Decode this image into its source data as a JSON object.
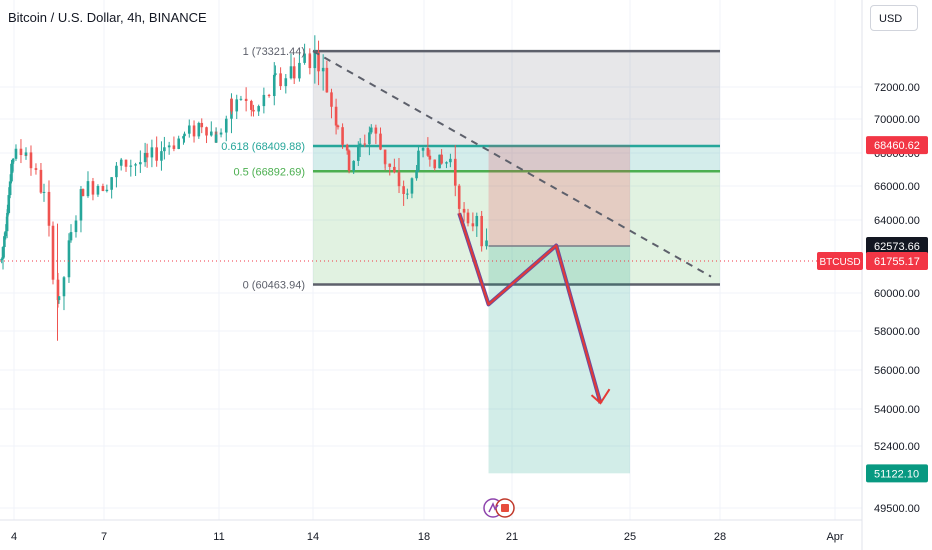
{
  "header": {
    "title": "Bitcoin / U.S. Dollar, 4h, BINANCE",
    "currency_button": "USD"
  },
  "colors": {
    "up": "#26a69a",
    "down": "#ef5350",
    "fib_line": "#26a69a",
    "fib_mid_line": "#4caf50",
    "price_badge": "#f23645",
    "target_badge": "#089981",
    "level_badge": "#131722",
    "arrow": "#e53935",
    "arrow_outline": "#6d4c9e",
    "trend_line": "#5d606b"
  },
  "icons": {
    "logo": "tradingview-logo-icon"
  },
  "chart_data": {
    "type": "candlestick",
    "symbol": "BTCUSD",
    "x_axis": {
      "ticks": [
        "4",
        "7",
        "11",
        "14",
        "18",
        "21",
        "25",
        "28",
        "Apr"
      ],
      "tick_days": [
        4,
        7,
        11,
        14,
        18,
        21,
        25,
        28,
        32
      ]
    },
    "y_axis": {
      "range": [
        48800,
        75200
      ],
      "ticks": [
        "72000.00",
        "70000.00",
        "68000.00",
        "66000.00",
        "64000.00",
        "60000.00",
        "58000.00",
        "56000.00",
        "54000.00",
        "52400.00",
        "49500.00"
      ],
      "tick_values": [
        72000,
        70000,
        68000,
        66000,
        64000,
        60000,
        58000,
        56000,
        54000,
        52400,
        49500
      ]
    },
    "current_price": {
      "label": "BTCUSD",
      "value": "61755.17",
      "num": 61755.17
    },
    "price_badges": [
      {
        "value": "68460.62",
        "num": 68460.62,
        "kind": "price"
      },
      {
        "value": "62573.66",
        "num": 62573.66,
        "kind": "level"
      },
      {
        "value": "51122.10",
        "num": 51122.1,
        "kind": "target"
      }
    ],
    "fibonacci": {
      "start_day": 14.0,
      "end_day": 28.0,
      "levels": [
        {
          "label": "1 (73321.44)",
          "value": 73321.44
        },
        {
          "label": "0.618 (68409.88)",
          "value": 68409.88
        },
        {
          "label": "0.5 (66892.69)",
          "value": 66892.69
        },
        {
          "label": "0 (60463.94)",
          "value": 60463.94
        }
      ]
    },
    "position": {
      "start_day": 20.2,
      "end_day": 25.0,
      "stop": 68460.62,
      "entry": 62573.66,
      "target": 51122.1
    },
    "trend_line": [
      {
        "day": 14.0,
        "price": 73320
      },
      {
        "day": 27.7,
        "price": 60900
      }
    ],
    "projection_arrow": [
      {
        "day": 19.2,
        "price": 64400
      },
      {
        "day": 20.2,
        "price": 59400
      },
      {
        "day": 22.5,
        "price": 62600
      },
      {
        "day": 24.0,
        "price": 54300
      }
    ],
    "candles_anchor": [
      {
        "day": 2.5,
        "price": 61800
      },
      {
        "day": 3.2,
        "price": 64800
      },
      {
        "day": 3.9,
        "price": 67800
      },
      {
        "day": 4.4,
        "price": 68100
      },
      {
        "day": 5.0,
        "price": 65400
      },
      {
        "day": 5.3,
        "price": 61300
      },
      {
        "day": 5.5,
        "price": 59400
      },
      {
        "day": 5.9,
        "price": 63100
      },
      {
        "day": 6.3,
        "price": 65800
      },
      {
        "day": 7.1,
        "price": 66300
      },
      {
        "day": 7.6,
        "price": 67300
      },
      {
        "day": 8.5,
        "price": 67500
      },
      {
        "day": 9.1,
        "price": 68400
      },
      {
        "day": 9.8,
        "price": 69000
      },
      {
        "day": 10.4,
        "price": 69800
      },
      {
        "day": 10.9,
        "price": 68900
      },
      {
        "day": 11.4,
        "price": 70600
      },
      {
        "day": 11.7,
        "price": 71400
      },
      {
        "day": 12.1,
        "price": 70300
      },
      {
        "day": 12.8,
        "price": 72100
      },
      {
        "day": 13.4,
        "price": 72700
      },
      {
        "day": 13.9,
        "price": 73200
      },
      {
        "day": 14.2,
        "price": 73000
      },
      {
        "day": 14.5,
        "price": 71800
      },
      {
        "day": 14.9,
        "price": 69700
      },
      {
        "day": 15.3,
        "price": 67200
      },
      {
        "day": 15.7,
        "price": 68300
      },
      {
        "day": 16.1,
        "price": 69500
      },
      {
        "day": 16.6,
        "price": 67600
      },
      {
        "day": 17.1,
        "price": 66100
      },
      {
        "day": 17.4,
        "price": 65300
      },
      {
        "day": 17.8,
        "price": 67800
      },
      {
        "day": 18.2,
        "price": 68000
      },
      {
        "day": 18.6,
        "price": 67300
      },
      {
        "day": 18.9,
        "price": 67600
      },
      {
        "day": 19.2,
        "price": 65300
      },
      {
        "day": 19.5,
        "price": 63200
      },
      {
        "day": 19.8,
        "price": 64500
      },
      {
        "day": 20.2,
        "price": 61700
      }
    ]
  }
}
